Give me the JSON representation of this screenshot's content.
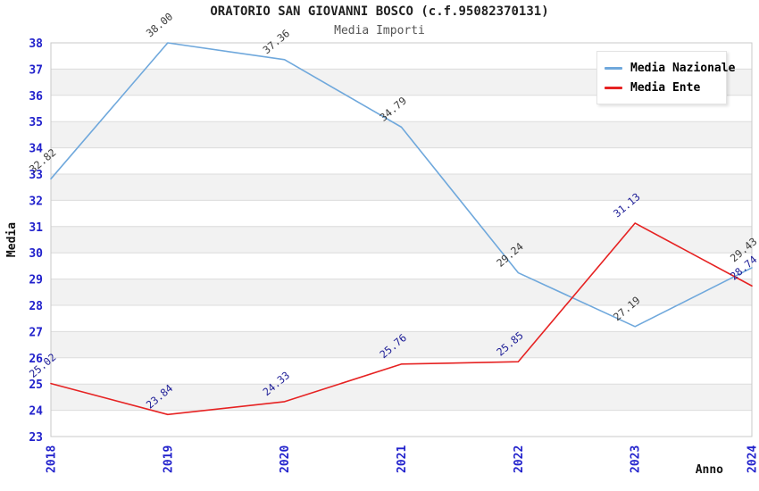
{
  "title": "ORATORIO SAN GIOVANNI BOSCO (c.f.95082370131)",
  "subtitle": "Media Importi",
  "legend": {
    "items": [
      {
        "label": "Media Nazionale",
        "color": "#6FA8DC"
      },
      {
        "label": "Media Ente",
        "color": "#E62222"
      }
    ]
  },
  "chart_data": {
    "type": "line",
    "x": [
      2018,
      2019,
      2020,
      2021,
      2022,
      2023,
      2024
    ],
    "series": [
      {
        "name": "Media Nazionale",
        "color": "#6FA8DC",
        "label_color": "#3a3a3a",
        "values": [
          32.82,
          38.0,
          37.36,
          34.79,
          29.24,
          27.19,
          29.43
        ]
      },
      {
        "name": "Media Ente",
        "color": "#E62222",
        "label_color": "#1c1c96",
        "values": [
          25.02,
          23.84,
          24.33,
          25.76,
          25.85,
          31.13,
          28.74
        ]
      }
    ],
    "xlabel": "Anno",
    "ylabel": "Media",
    "ylim": [
      23,
      38
    ],
    "y_tick_step": 1,
    "grid": true,
    "band_fill_odd": "#f2f2f2",
    "band_fill_even": "#ffffff",
    "gridline_color": "#dcdcdc",
    "border_color": "#c9c9c9",
    "tick_label_color": "#2222cc",
    "axis_title_color": "#111111",
    "legend_position": "top-right"
  }
}
